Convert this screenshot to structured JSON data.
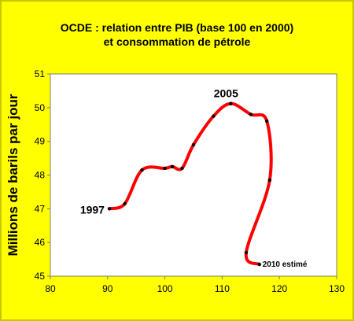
{
  "title": {
    "line1": "OCDE : relation entre PIB (base 100 en 2000)",
    "line2": "et consommation de pétrole"
  },
  "chart_data": {
    "type": "line",
    "title": "OCDE : relation entre PIB (base 100 en 2000) et consommation de pétrole",
    "xlabel": "",
    "ylabel": "Millions de barils par jour",
    "xlim": [
      80,
      130
    ],
    "ylim": [
      45,
      51
    ],
    "x_ticks": [
      80,
      90,
      100,
      110,
      120,
      130
    ],
    "y_ticks": [
      45,
      46,
      47,
      48,
      49,
      50,
      51
    ],
    "grid": false,
    "series": [
      {
        "color": "#ff0000",
        "points": [
          {
            "x": 90.3,
            "y": 47.0
          },
          {
            "x": 93.0,
            "y": 47.15
          },
          {
            "x": 96.0,
            "y": 48.15
          },
          {
            "x": 100.0,
            "y": 48.2
          },
          {
            "x": 101.3,
            "y": 48.25
          },
          {
            "x": 103.0,
            "y": 48.2
          },
          {
            "x": 105.0,
            "y": 48.9
          },
          {
            "x": 108.5,
            "y": 49.75
          },
          {
            "x": 111.5,
            "y": 50.12
          },
          {
            "x": 115.0,
            "y": 49.8
          },
          {
            "x": 117.8,
            "y": 49.6
          },
          {
            "x": 118.3,
            "y": 47.85
          },
          {
            "x": 114.2,
            "y": 45.7
          },
          {
            "x": 116.5,
            "y": 45.35
          }
        ]
      }
    ],
    "annotations": [
      {
        "text": "1997",
        "x": 90.3,
        "y": 47.0
      },
      {
        "text": "2005",
        "x": 111.5,
        "y": 50.12
      },
      {
        "text": "2010 estimé",
        "x": 116.5,
        "y": 45.35
      }
    ]
  }
}
